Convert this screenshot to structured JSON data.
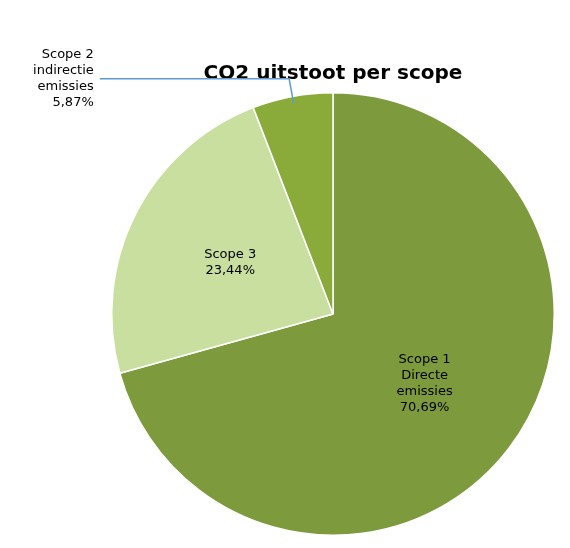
{
  "chart_data": {
    "type": "pie",
    "title": "CO2 uitstoot per scope",
    "categories": [
      "Scope 1\nDirecte\nemissies",
      "Scope 3",
      "Scope 2\nindirectie\nemissies"
    ],
    "values": [
      70.69,
      23.44,
      5.87
    ],
    "value_labels": [
      "70,69%",
      "23,44%",
      "5,87%"
    ],
    "colors": [
      "#7d9a3c",
      "#c8dfa0",
      "#8aaa3a"
    ],
    "data_labels": true,
    "legend": false
  }
}
